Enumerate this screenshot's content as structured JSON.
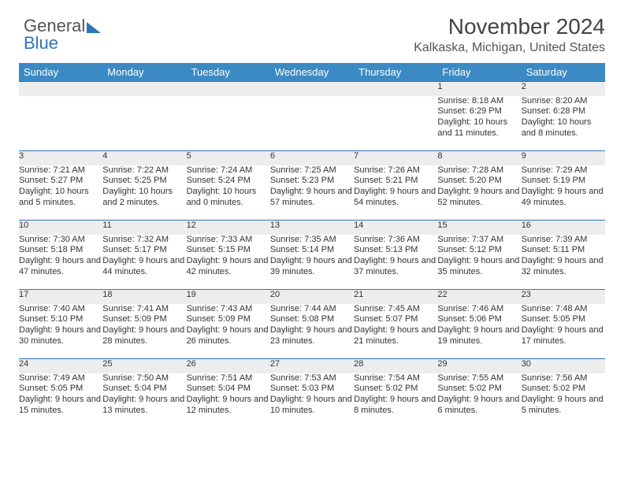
{
  "brand": {
    "part1": "General",
    "part2": "Blue"
  },
  "title": "November 2024",
  "location": "Kalkaska, Michigan, United States",
  "colors": {
    "header_bg": "#3b8ac4",
    "header_fg": "#ffffff",
    "row_divider": "#2f76b8",
    "daynum_bg": "#ededed",
    "text": "#333333",
    "background": "#ffffff"
  },
  "dayHeaders": [
    "Sunday",
    "Monday",
    "Tuesday",
    "Wednesday",
    "Thursday",
    "Friday",
    "Saturday"
  ],
  "weeks": [
    [
      null,
      null,
      null,
      null,
      null,
      {
        "n": "1",
        "sr": "8:18 AM",
        "ss": "6:29 PM",
        "dl": "10 hours and 11 minutes."
      },
      {
        "n": "2",
        "sr": "8:20 AM",
        "ss": "6:28 PM",
        "dl": "10 hours and 8 minutes."
      }
    ],
    [
      {
        "n": "3",
        "sr": "7:21 AM",
        "ss": "5:27 PM",
        "dl": "10 hours and 5 minutes."
      },
      {
        "n": "4",
        "sr": "7:22 AM",
        "ss": "5:25 PM",
        "dl": "10 hours and 2 minutes."
      },
      {
        "n": "5",
        "sr": "7:24 AM",
        "ss": "5:24 PM",
        "dl": "10 hours and 0 minutes."
      },
      {
        "n": "6",
        "sr": "7:25 AM",
        "ss": "5:23 PM",
        "dl": "9 hours and 57 minutes."
      },
      {
        "n": "7",
        "sr": "7:26 AM",
        "ss": "5:21 PM",
        "dl": "9 hours and 54 minutes."
      },
      {
        "n": "8",
        "sr": "7:28 AM",
        "ss": "5:20 PM",
        "dl": "9 hours and 52 minutes."
      },
      {
        "n": "9",
        "sr": "7:29 AM",
        "ss": "5:19 PM",
        "dl": "9 hours and 49 minutes."
      }
    ],
    [
      {
        "n": "10",
        "sr": "7:30 AM",
        "ss": "5:18 PM",
        "dl": "9 hours and 47 minutes."
      },
      {
        "n": "11",
        "sr": "7:32 AM",
        "ss": "5:17 PM",
        "dl": "9 hours and 44 minutes."
      },
      {
        "n": "12",
        "sr": "7:33 AM",
        "ss": "5:15 PM",
        "dl": "9 hours and 42 minutes."
      },
      {
        "n": "13",
        "sr": "7:35 AM",
        "ss": "5:14 PM",
        "dl": "9 hours and 39 minutes."
      },
      {
        "n": "14",
        "sr": "7:36 AM",
        "ss": "5:13 PM",
        "dl": "9 hours and 37 minutes."
      },
      {
        "n": "15",
        "sr": "7:37 AM",
        "ss": "5:12 PM",
        "dl": "9 hours and 35 minutes."
      },
      {
        "n": "16",
        "sr": "7:39 AM",
        "ss": "5:11 PM",
        "dl": "9 hours and 32 minutes."
      }
    ],
    [
      {
        "n": "17",
        "sr": "7:40 AM",
        "ss": "5:10 PM",
        "dl": "9 hours and 30 minutes."
      },
      {
        "n": "18",
        "sr": "7:41 AM",
        "ss": "5:09 PM",
        "dl": "9 hours and 28 minutes."
      },
      {
        "n": "19",
        "sr": "7:43 AM",
        "ss": "5:09 PM",
        "dl": "9 hours and 26 minutes."
      },
      {
        "n": "20",
        "sr": "7:44 AM",
        "ss": "5:08 PM",
        "dl": "9 hours and 23 minutes."
      },
      {
        "n": "21",
        "sr": "7:45 AM",
        "ss": "5:07 PM",
        "dl": "9 hours and 21 minutes."
      },
      {
        "n": "22",
        "sr": "7:46 AM",
        "ss": "5:06 PM",
        "dl": "9 hours and 19 minutes."
      },
      {
        "n": "23",
        "sr": "7:48 AM",
        "ss": "5:05 PM",
        "dl": "9 hours and 17 minutes."
      }
    ],
    [
      {
        "n": "24",
        "sr": "7:49 AM",
        "ss": "5:05 PM",
        "dl": "9 hours and 15 minutes."
      },
      {
        "n": "25",
        "sr": "7:50 AM",
        "ss": "5:04 PM",
        "dl": "9 hours and 13 minutes."
      },
      {
        "n": "26",
        "sr": "7:51 AM",
        "ss": "5:04 PM",
        "dl": "9 hours and 12 minutes."
      },
      {
        "n": "27",
        "sr": "7:53 AM",
        "ss": "5:03 PM",
        "dl": "9 hours and 10 minutes."
      },
      {
        "n": "28",
        "sr": "7:54 AM",
        "ss": "5:02 PM",
        "dl": "9 hours and 8 minutes."
      },
      {
        "n": "29",
        "sr": "7:55 AM",
        "ss": "5:02 PM",
        "dl": "9 hours and 6 minutes."
      },
      {
        "n": "30",
        "sr": "7:56 AM",
        "ss": "5:02 PM",
        "dl": "9 hours and 5 minutes."
      }
    ]
  ],
  "labels": {
    "sunrise": "Sunrise: ",
    "sunset": "Sunset: ",
    "daylight": "Daylight: "
  }
}
